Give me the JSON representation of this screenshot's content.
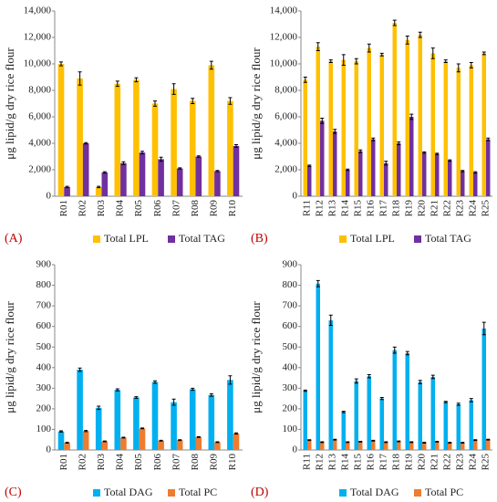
{
  "chart_data": [
    {
      "type": "bar",
      "panel_label": "(A)",
      "y_label": "μg lipid/g dry rice flour",
      "categories": [
        "R01",
        "R02",
        "R03",
        "R04",
        "R05",
        "R06",
        "R07",
        "R08",
        "R09",
        "R10"
      ],
      "series": [
        {
          "name": "Total LPL",
          "color": "#ffc000",
          "values": [
            10000,
            8900,
            700,
            8500,
            8800,
            7000,
            8100,
            7200,
            9900,
            7200
          ],
          "errors": [
            150,
            500,
            50,
            200,
            150,
            200,
            400,
            200,
            300,
            250
          ]
        },
        {
          "name": "Total TAG",
          "color": "#7030a0",
          "values": [
            700,
            4000,
            1800,
            2500,
            3300,
            2800,
            2100,
            3000,
            1900,
            3800
          ],
          "errors": [
            50,
            50,
            50,
            100,
            100,
            150,
            50,
            50,
            50,
            100
          ]
        }
      ],
      "ylim": [
        0,
        14000
      ],
      "yticks": [
        0,
        {
          "value": 2000,
          "label": "2,000"
        },
        {
          "value": 4000,
          "label": "4,000"
        },
        {
          "value": 6000,
          "label": "6,000"
        },
        {
          "value": 8000,
          "label": "8,000"
        },
        {
          "value": 10000,
          "label": "10,000"
        },
        {
          "value": 12000,
          "label": "12,000"
        },
        {
          "value": 14000,
          "label": "14,000"
        }
      ]
    },
    {
      "type": "bar",
      "panel_label": "(B)",
      "y_label": "μg lipid/g dry rice flour",
      "categories": [
        "R11",
        "R12",
        "R13",
        "R14",
        "R15",
        "R16",
        "R17",
        "R18",
        "R19",
        "R20",
        "R21",
        "R22",
        "R23",
        "R24",
        "R25"
      ],
      "series": [
        {
          "name": "Total LPL",
          "color": "#ffc000",
          "values": [
            8800,
            11300,
            10200,
            10300,
            10200,
            11200,
            10700,
            13100,
            11800,
            12200,
            10800,
            10200,
            9700,
            9900,
            10800
          ],
          "errors": [
            200,
            300,
            100,
            400,
            200,
            300,
            100,
            200,
            300,
            200,
            400,
            100,
            300,
            200,
            100
          ]
        },
        {
          "name": "Total TAG",
          "color": "#7030a0",
          "values": [
            2300,
            5700,
            4900,
            2000,
            3400,
            4300,
            2500,
            4000,
            6000,
            3300,
            3200,
            2700,
            1900,
            1800,
            4300
          ],
          "errors": [
            50,
            200,
            150,
            50,
            100,
            100,
            150,
            100,
            200,
            50,
            50,
            50,
            50,
            50,
            100
          ]
        }
      ],
      "ylim": [
        0,
        14000
      ],
      "yticks": [
        0,
        {
          "value": 2000,
          "label": "2,000"
        },
        {
          "value": 4000,
          "label": "4,000"
        },
        {
          "value": 6000,
          "label": "6,000"
        },
        {
          "value": 8000,
          "label": "8,000"
        },
        {
          "value": 10000,
          "label": "10,000"
        },
        {
          "value": 12000,
          "label": "12,000"
        },
        {
          "value": 14000,
          "label": "14,000"
        }
      ]
    },
    {
      "type": "bar",
      "panel_label": "(C)",
      "y_label": "μg lipid/g dry rice flour",
      "categories": [
        "R01",
        "R02",
        "R03",
        "R04",
        "R05",
        "R06",
        "R07",
        "R08",
        "R09",
        "R10"
      ],
      "series": [
        {
          "name": "Total DAG",
          "color": "#00b0f0",
          "values": [
            90,
            390,
            205,
            292,
            255,
            330,
            232,
            295,
            267,
            340
          ],
          "errors": [
            3,
            8,
            8,
            5,
            4,
            6,
            15,
            5,
            6,
            20
          ]
        },
        {
          "name": "Total PC",
          "color": "#ed7d31",
          "values": [
            35,
            92,
            42,
            60,
            105,
            45,
            48,
            63,
            38,
            80
          ],
          "errors": [
            2,
            3,
            2,
            2,
            2,
            2,
            2,
            2,
            2,
            3
          ]
        }
      ],
      "ylim": [
        0,
        900
      ],
      "yticks": [
        0,
        100,
        200,
        300,
        400,
        500,
        600,
        700,
        800,
        900
      ]
    },
    {
      "type": "bar",
      "panel_label": "(D)",
      "y_label": "μg lipid/g dry rice flour",
      "categories": [
        "R11",
        "R12",
        "R13",
        "R14",
        "R15",
        "R16",
        "R17",
        "R18",
        "R19",
        "R20",
        "R21",
        "R22",
        "R23",
        "R24",
        "R25"
      ],
      "series": [
        {
          "name": "Total DAG",
          "color": "#00b0f0",
          "values": [
            288,
            808,
            630,
            185,
            335,
            358,
            250,
            485,
            470,
            330,
            355,
            233,
            222,
            242,
            590
          ],
          "errors": [
            3,
            15,
            25,
            3,
            10,
            8,
            5,
            15,
            8,
            8,
            8,
            3,
            5,
            8,
            30
          ]
        },
        {
          "name": "Total PC",
          "color": "#ed7d31",
          "values": [
            48,
            38,
            50,
            38,
            40,
            45,
            38,
            42,
            38,
            35,
            40,
            35,
            35,
            48,
            50
          ],
          "errors": [
            2,
            2,
            2,
            2,
            2,
            2,
            2,
            2,
            2,
            2,
            2,
            2,
            2,
            2,
            2
          ]
        }
      ],
      "ylim": [
        0,
        900
      ],
      "yticks": [
        0,
        100,
        200,
        300,
        400,
        500,
        600,
        700,
        800,
        900
      ]
    }
  ]
}
